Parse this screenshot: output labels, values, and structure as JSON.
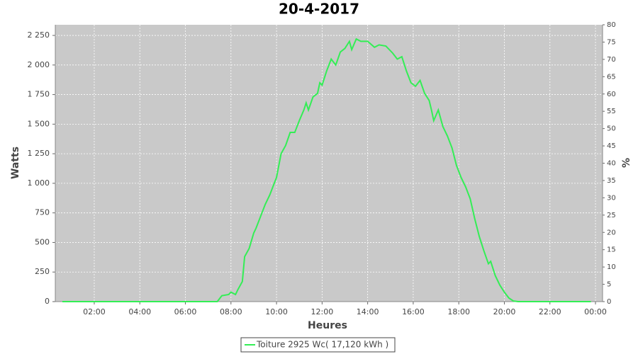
{
  "chart_data": {
    "type": "line",
    "title": "20-4-2017",
    "xlabel": "Heures",
    "ylabel": "Watts",
    "y2label": "%",
    "x": [
      0.6,
      7.4,
      7.6,
      7.9,
      8.0,
      8.2,
      8.3,
      8.5,
      8.6,
      8.8,
      9.0,
      9.1,
      9.3,
      9.5,
      9.7,
      9.9,
      10.0,
      10.2,
      10.4,
      10.6,
      10.8,
      11.0,
      11.2,
      11.3,
      11.4,
      11.6,
      11.8,
      11.9,
      12.0,
      12.2,
      12.4,
      12.6,
      12.8,
      13.0,
      13.2,
      13.3,
      13.5,
      13.7,
      14.0,
      14.3,
      14.5,
      14.8,
      15.1,
      15.3,
      15.5,
      15.7,
      15.9,
      16.1,
      16.3,
      16.5,
      16.7,
      16.8,
      16.9,
      17.1,
      17.3,
      17.5,
      17.7,
      17.9,
      18.1,
      18.3,
      18.5,
      18.7,
      18.9,
      19.1,
      19.3,
      19.4,
      19.6,
      19.8,
      20.0,
      20.2,
      20.4,
      20.6,
      23.8
    ],
    "series": [
      {
        "name": "Toiture 2925 Wc( 17,120 kWh )",
        "color": "#33ee55",
        "values": [
          0,
          0,
          50,
          60,
          80,
          60,
          100,
          170,
          380,
          450,
          580,
          620,
          720,
          820,
          900,
          1000,
          1050,
          1250,
          1320,
          1430,
          1430,
          1530,
          1620,
          1680,
          1620,
          1730,
          1760,
          1850,
          1830,
          1950,
          2050,
          2000,
          2110,
          2140,
          2200,
          2130,
          2220,
          2200,
          2200,
          2150,
          2170,
          2160,
          2100,
          2050,
          2070,
          1950,
          1850,
          1820,
          1870,
          1760,
          1700,
          1620,
          1530,
          1620,
          1480,
          1400,
          1300,
          1150,
          1050,
          970,
          870,
          700,
          550,
          430,
          320,
          340,
          220,
          140,
          80,
          30,
          5,
          0,
          0
        ]
      }
    ],
    "xlim": [
      0.29,
      24.31
    ],
    "xticks": [
      {
        "value": 2,
        "label": "02:00"
      },
      {
        "value": 4,
        "label": "04:00"
      },
      {
        "value": 6,
        "label": "06:00"
      },
      {
        "value": 8,
        "label": "08:00"
      },
      {
        "value": 10,
        "label": "10:00"
      },
      {
        "value": 12,
        "label": "12:00"
      },
      {
        "value": 14,
        "label": "14:00"
      },
      {
        "value": 16,
        "label": "16:00"
      },
      {
        "value": 18,
        "label": "18:00"
      },
      {
        "value": 20,
        "label": "20:00"
      },
      {
        "value": 22,
        "label": "22:00"
      },
      {
        "value": 24,
        "label": "00:00"
      }
    ],
    "ylim": [
      0,
      2340
    ],
    "yticks": [
      0,
      250,
      500,
      750,
      {
        "value": 1000,
        "label": "1 000"
      },
      {
        "value": 1250,
        "label": "1 250"
      },
      {
        "value": 1500,
        "label": "1 500"
      },
      {
        "value": 1750,
        "label": "1 750"
      },
      {
        "value": 2000,
        "label": "2 000"
      },
      {
        "value": 2250,
        "label": "2 250"
      }
    ],
    "y2lim": [
      0,
      80
    ],
    "y2ticks": [
      0,
      5,
      10,
      15,
      20,
      25,
      30,
      35,
      40,
      45,
      50,
      55,
      60,
      65,
      70,
      75,
      80
    ],
    "grid": true,
    "legend": "bottom"
  }
}
